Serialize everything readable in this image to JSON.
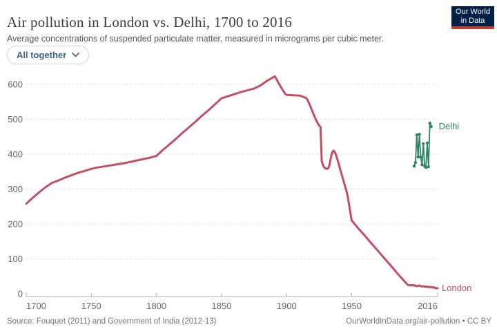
{
  "header": {
    "title": "Air pollution in London vs. Delhi, 1700 to 2016",
    "subtitle": "Average concentrations of suspended particulate matter, measured in micrograms per cubic meter.",
    "logo": {
      "line1": "Our World",
      "line2": "in Data",
      "bg_color": "#002147",
      "bar_color": "#c23b31"
    }
  },
  "controls": {
    "entity_picker": {
      "label": "All together",
      "icon": "chevron-down-icon"
    }
  },
  "chart_data": {
    "type": "line",
    "title": "Air pollution in London vs. Delhi, 1700 to 2016",
    "ylabel": "micrograms per cubic meter",
    "xlabel": "",
    "xlim": [
      1700,
      2016
    ],
    "ylim": [
      0,
      650
    ],
    "x_ticks": [
      1700,
      1750,
      1800,
      1850,
      1900,
      1950,
      2016
    ],
    "y_ticks": [
      0,
      100,
      200,
      300,
      400,
      500,
      600
    ],
    "grid": "horizontal-dashed",
    "legend_position": "end-of-line-labels",
    "series": [
      {
        "name": "London",
        "color": "#c44e64",
        "line_width": 3,
        "points": [
          [
            1700,
            258
          ],
          [
            1705,
            275
          ],
          [
            1710,
            291
          ],
          [
            1715,
            306
          ],
          [
            1720,
            318
          ],
          [
            1725,
            325
          ],
          [
            1730,
            333
          ],
          [
            1735,
            340
          ],
          [
            1740,
            347
          ],
          [
            1745,
            352
          ],
          [
            1750,
            358
          ],
          [
            1755,
            362
          ],
          [
            1760,
            365
          ],
          [
            1765,
            368
          ],
          [
            1770,
            371
          ],
          [
            1775,
            374
          ],
          [
            1780,
            378
          ],
          [
            1785,
            382
          ],
          [
            1790,
            386
          ],
          [
            1795,
            390
          ],
          [
            1800,
            395
          ],
          [
            1805,
            412
          ],
          [
            1810,
            428
          ],
          [
            1815,
            444
          ],
          [
            1820,
            461
          ],
          [
            1825,
            477
          ],
          [
            1830,
            493
          ],
          [
            1835,
            510
          ],
          [
            1840,
            526
          ],
          [
            1845,
            543
          ],
          [
            1850,
            560
          ],
          [
            1855,
            566
          ],
          [
            1860,
            572
          ],
          [
            1865,
            578
          ],
          [
            1870,
            583
          ],
          [
            1875,
            588
          ],
          [
            1880,
            597
          ],
          [
            1885,
            610
          ],
          [
            1890,
            621
          ],
          [
            1891,
            623
          ],
          [
            1895,
            596
          ],
          [
            1899,
            572
          ],
          [
            1900,
            570
          ],
          [
            1905,
            569
          ],
          [
            1910,
            568
          ],
          [
            1915,
            561
          ],
          [
            1916,
            556
          ],
          [
            1917,
            548
          ],
          [
            1918,
            539
          ],
          [
            1919,
            530
          ],
          [
            1920,
            521
          ],
          [
            1921,
            512
          ],
          [
            1922,
            503
          ],
          [
            1923,
            495
          ],
          [
            1924,
            488
          ],
          [
            1925,
            482
          ],
          [
            1926,
            478
          ],
          [
            1927,
            380
          ],
          [
            1928,
            368
          ],
          [
            1929,
            362
          ],
          [
            1930,
            359
          ],
          [
            1931,
            358
          ],
          [
            1932,
            360
          ],
          [
            1933,
            370
          ],
          [
            1934,
            390
          ],
          [
            1935,
            405
          ],
          [
            1936,
            410
          ],
          [
            1937,
            406
          ],
          [
            1938,
            397
          ],
          [
            1939,
            385
          ],
          [
            1940,
            372
          ],
          [
            1941,
            359
          ],
          [
            1942,
            346
          ],
          [
            1943,
            333
          ],
          [
            1944,
            320
          ],
          [
            1945,
            307
          ],
          [
            1946,
            294
          ],
          [
            1947,
            277
          ],
          [
            1948,
            255
          ],
          [
            1949,
            232
          ],
          [
            1950,
            210
          ],
          [
            1955,
            188
          ],
          [
            1960,
            167
          ],
          [
            1965,
            145
          ],
          [
            1970,
            124
          ],
          [
            1975,
            102
          ],
          [
            1980,
            81
          ],
          [
            1985,
            59
          ],
          [
            1990,
            38
          ],
          [
            1993,
            26
          ],
          [
            1994,
            25
          ],
          [
            1995,
            24
          ],
          [
            1996,
            25
          ],
          [
            1997,
            24
          ],
          [
            1998,
            25
          ],
          [
            1999,
            23
          ],
          [
            2000,
            22
          ],
          [
            2001,
            23
          ],
          [
            2002,
            24
          ],
          [
            2003,
            22
          ],
          [
            2004,
            21
          ],
          [
            2005,
            22
          ],
          [
            2006,
            21
          ],
          [
            2007,
            20
          ],
          [
            2008,
            21
          ],
          [
            2009,
            19
          ],
          [
            2010,
            20
          ],
          [
            2011,
            19
          ],
          [
            2012,
            18
          ],
          [
            2013,
            19
          ],
          [
            2014,
            17
          ],
          [
            2015,
            16
          ],
          [
            2016,
            16
          ]
        ],
        "markers": "dense-yearly-segments"
      },
      {
        "name": "Delhi",
        "color": "#2c8465",
        "line_width": 1.8,
        "points": [
          [
            1998,
            366
          ],
          [
            1999,
            376
          ],
          [
            2000,
            455
          ],
          [
            2001,
            392
          ],
          [
            2002,
            457
          ],
          [
            2003,
            392
          ],
          [
            2004,
            370
          ],
          [
            2005,
            430
          ],
          [
            2006,
            366
          ],
          [
            2007,
            362
          ],
          [
            2008,
            432
          ],
          [
            2009,
            364
          ],
          [
            2010,
            489
          ],
          [
            2011,
            479
          ]
        ],
        "markers": "all"
      }
    ]
  },
  "footer": {
    "source": "Source: Fouquet (2011) and Government of India (2012-13)",
    "attribution": "OurWorldInData.org/air-pollution • CC BY"
  }
}
